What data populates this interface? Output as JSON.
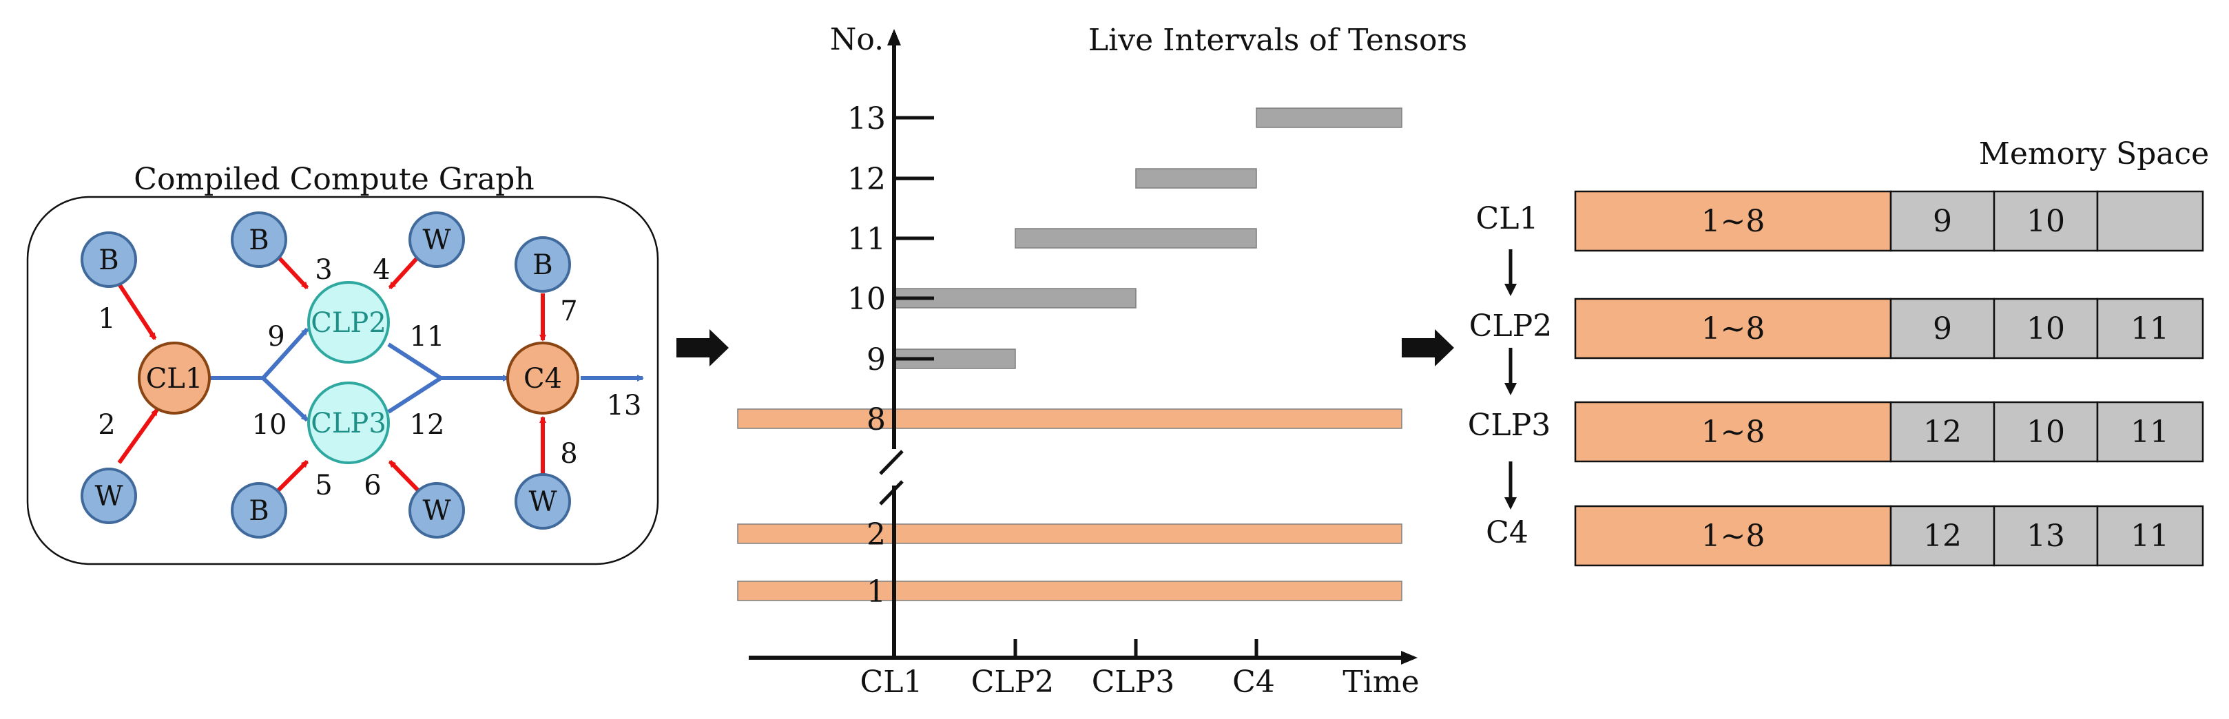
{
  "colors": {
    "node_blue_fill": "#8eb3dc",
    "node_blue_stroke": "#3f6a9b",
    "node_orange_fill": "#f3b085",
    "node_orange_stroke": "#8b4513",
    "node_cyan_fill": "#c8f7f5",
    "node_cyan_stroke": "#2fa8a0",
    "edge_red": "#ee1111",
    "edge_blue": "#4472c4",
    "bar_orange": "#f4b183",
    "bar_gray": "#a6a6a6",
    "cell_gray": "#c4c4c4",
    "line_dark": "#111111"
  },
  "graph_panel": {
    "title": "Compiled Compute Graph",
    "nodes": [
      {
        "id": "b_top_left",
        "label": "B",
        "kind": "input"
      },
      {
        "id": "w_bottom_left",
        "label": "W",
        "kind": "input"
      },
      {
        "id": "cl1",
        "label": "CL1",
        "kind": "layer"
      },
      {
        "id": "b_top_mid",
        "label": "B",
        "kind": "input"
      },
      {
        "id": "w_top_mid",
        "label": "W",
        "kind": "input"
      },
      {
        "id": "clp2",
        "label": "CLP2",
        "kind": "fused"
      },
      {
        "id": "clp3",
        "label": "CLP3",
        "kind": "fused"
      },
      {
        "id": "b_bottom_mid",
        "label": "B",
        "kind": "input"
      },
      {
        "id": "w_bottom_mid",
        "label": "W",
        "kind": "input"
      },
      {
        "id": "b_top_right",
        "label": "B",
        "kind": "input"
      },
      {
        "id": "c4",
        "label": "C4",
        "kind": "layer"
      },
      {
        "id": "w_bottom_right",
        "label": "W",
        "kind": "input"
      }
    ],
    "edges": [
      {
        "id": "1",
        "from": "b_top_left",
        "to": "cl1",
        "type": "red"
      },
      {
        "id": "2",
        "from": "w_bottom_left",
        "to": "cl1",
        "type": "red"
      },
      {
        "id": "3",
        "from": "b_top_mid",
        "to": "clp2",
        "type": "red"
      },
      {
        "id": "4",
        "from": "w_top_mid",
        "to": "clp2",
        "type": "red"
      },
      {
        "id": "5",
        "from": "b_bottom_mid",
        "to": "clp3",
        "type": "red"
      },
      {
        "id": "6",
        "from": "w_bottom_mid",
        "to": "clp3",
        "type": "red"
      },
      {
        "id": "7",
        "from": "b_top_right",
        "to": "c4",
        "type": "red"
      },
      {
        "id": "8",
        "from": "w_bottom_right",
        "to": "c4",
        "type": "red"
      },
      {
        "id": "9",
        "from": "cl1",
        "to": "clp2",
        "type": "blue"
      },
      {
        "id": "10",
        "from": "cl1",
        "to": "clp3",
        "type": "blue"
      },
      {
        "id": "11",
        "from": "clp2",
        "to": "c4",
        "type": "blue"
      },
      {
        "id": "12",
        "from": "clp3",
        "to": "c4",
        "type": "blue"
      },
      {
        "id": "13",
        "from": "c4",
        "to": "output",
        "type": "blue"
      }
    ]
  },
  "chart_data": {
    "type": "gantt",
    "title": "Live Intervals of Tensors",
    "ylabel": "No.",
    "xlabel": "Time",
    "x_ticks": [
      "CL1",
      "CLP2",
      "CLP3",
      "C4"
    ],
    "y_ticks": [
      "1",
      "2",
      "8",
      "9",
      "10",
      "11",
      "12",
      "13"
    ],
    "axis_break_between": [
      "2",
      "8"
    ],
    "intervals": [
      {
        "tensor": "1",
        "start": "before CL1",
        "end": "after C4",
        "kind": "persistent"
      },
      {
        "tensor": "2",
        "start": "before CL1",
        "end": "after C4",
        "kind": "persistent"
      },
      {
        "tensor": "8",
        "start": "before CL1",
        "end": "after C4",
        "kind": "persistent"
      },
      {
        "tensor": "9",
        "start": "CL1",
        "end": "CLP2",
        "kind": "activation"
      },
      {
        "tensor": "10",
        "start": "CL1",
        "end": "CLP3",
        "kind": "activation"
      },
      {
        "tensor": "11",
        "start": "CLP2",
        "end": "C4",
        "kind": "activation"
      },
      {
        "tensor": "12",
        "start": "CLP3",
        "end": "C4",
        "kind": "activation"
      },
      {
        "tensor": "13",
        "start": "C4",
        "end": "after C4",
        "kind": "activation"
      }
    ]
  },
  "memory_panel": {
    "title": "Memory Space",
    "rows": [
      {
        "step": "CL1",
        "cells": [
          "1~8",
          "9",
          "10",
          ""
        ]
      },
      {
        "step": "CLP2",
        "cells": [
          "1~8",
          "9",
          "10",
          "11"
        ]
      },
      {
        "step": "CLP3",
        "cells": [
          "1~8",
          "12",
          "10",
          "11"
        ]
      },
      {
        "step": "C4",
        "cells": [
          "1~8",
          "12",
          "13",
          "11"
        ]
      }
    ]
  }
}
